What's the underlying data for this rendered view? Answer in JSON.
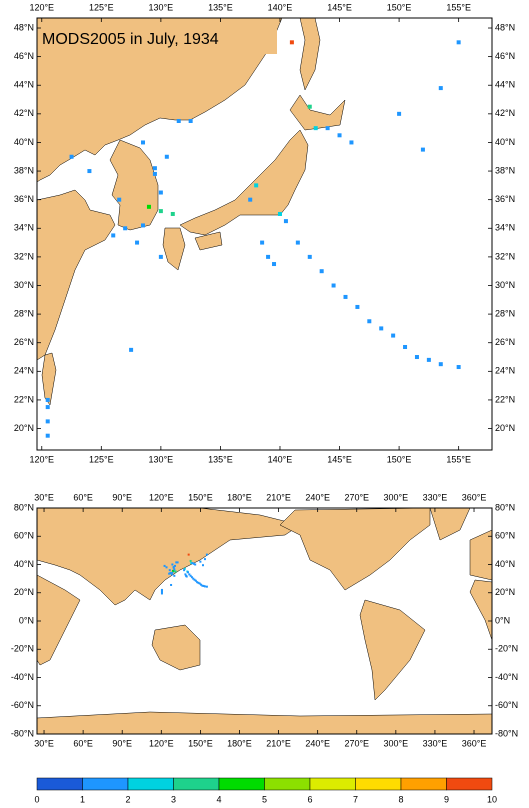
{
  "title": "MODS2005 in July, 1934",
  "top_map": {
    "xlim": [
      119.6,
      157.8
    ],
    "ylim": [
      18.5,
      48.7
    ],
    "xticks": [
      {
        "value": 120,
        "label": "120°E"
      },
      {
        "value": 125,
        "label": "125°E"
      },
      {
        "value": 130,
        "label": "130°E"
      },
      {
        "value": 135,
        "label": "135°E"
      },
      {
        "value": 140,
        "label": "140°E"
      },
      {
        "value": 145,
        "label": "145°E"
      },
      {
        "value": 150,
        "label": "150°E"
      },
      {
        "value": 155,
        "label": "155°E"
      }
    ],
    "yticks": [
      {
        "value": 20,
        "label": "20°N"
      },
      {
        "value": 22,
        "label": "22°N"
      },
      {
        "value": 24,
        "label": "24°N"
      },
      {
        "value": 26,
        "label": "26°N"
      },
      {
        "value": 28,
        "label": "28°N"
      },
      {
        "value": 30,
        "label": "30°N"
      },
      {
        "value": 32,
        "label": "32°N"
      },
      {
        "value": 34,
        "label": "34°N"
      },
      {
        "value": 36,
        "label": "36°N"
      },
      {
        "value": 38,
        "label": "38°N"
      },
      {
        "value": 40,
        "label": "40°N"
      },
      {
        "value": 42,
        "label": "42°N"
      },
      {
        "value": 44,
        "label": "44°N"
      },
      {
        "value": 46,
        "label": "46°N"
      },
      {
        "value": 48,
        "label": "48°N"
      }
    ]
  },
  "bottom_map": {
    "xlim": [
      24.6,
      373.8
    ],
    "ylim": [
      -80,
      80
    ],
    "xticks": [
      {
        "value": 30,
        "label": "30°E"
      },
      {
        "value": 60,
        "label": "60°E"
      },
      {
        "value": 90,
        "label": "90°E"
      },
      {
        "value": 120,
        "label": "120°E"
      },
      {
        "value": 150,
        "label": "150°E"
      },
      {
        "value": 180,
        "label": "180°E"
      },
      {
        "value": 210,
        "label": "210°E"
      },
      {
        "value": 240,
        "label": "240°E"
      },
      {
        "value": 270,
        "label": "270°E"
      },
      {
        "value": 300,
        "label": "300°E"
      },
      {
        "value": 330,
        "label": "330°E"
      },
      {
        "value": 360,
        "label": "360°E"
      }
    ],
    "yticks": [
      {
        "value": 80,
        "label": "80°N"
      },
      {
        "value": 60,
        "label": "60°N"
      },
      {
        "value": 40,
        "label": "40°N"
      },
      {
        "value": 20,
        "label": "20°N"
      },
      {
        "value": 0,
        "label": "0°N"
      },
      {
        "value": -20,
        "label": "-20°N"
      },
      {
        "value": -40,
        "label": "-40°N"
      },
      {
        "value": -60,
        "label": "-60°N"
      },
      {
        "value": -80,
        "label": "-80°N"
      }
    ]
  },
  "colorbar": {
    "ticks": [
      0,
      1,
      2,
      3,
      4,
      5,
      6,
      7,
      8,
      9,
      10
    ],
    "colors": [
      "#1a5ad8",
      "#1e96ff",
      "#00d2e0",
      "#1ed28c",
      "#00dc00",
      "#8ce000",
      "#dcec00",
      "#ffdc00",
      "#ffa000",
      "#f04a10"
    ]
  },
  "observations": {
    "lon": [
      141.5,
      142.5,
      143.5,
      144.5,
      145.5,
      146.5,
      147.5,
      148.5,
      149.5,
      150.5,
      151.5,
      152.5,
      153.5,
      155,
      155,
      153.5,
      150,
      152,
      141,
      142.5,
      143,
      144,
      145,
      146,
      138,
      137.5,
      140,
      140.5,
      138.5,
      139,
      139.5,
      130,
      129,
      131,
      128.5,
      127,
      126,
      128,
      130,
      127.5,
      120.5,
      120.5,
      120.5,
      120.5,
      124,
      122.5,
      126.5,
      130,
      129.5,
      129.5,
      131.5,
      132.5,
      128.5,
      130.5
    ],
    "lat": [
      33,
      32,
      31,
      30,
      29.2,
      28.5,
      27.5,
      27,
      26.5,
      25.7,
      25,
      24.8,
      24.5,
      24.3,
      47,
      43.8,
      42,
      39.5,
      47,
      42.5,
      41,
      41,
      40.5,
      40,
      37,
      36,
      35,
      34.5,
      33,
      32,
      31.5,
      35.2,
      35.5,
      35,
      34.2,
      34,
      33.5,
      33,
      32,
      25.5,
      21.5,
      20.5,
      19.5,
      22,
      38,
      39,
      36,
      36.5,
      38.2,
      37.8,
      41.5,
      41.5,
      40,
      39
    ],
    "values": [
      1,
      1,
      1,
      1,
      1,
      1,
      1,
      1,
      1,
      1,
      1,
      1,
      1,
      1,
      1,
      1,
      1,
      1,
      9,
      3,
      2,
      1,
      1,
      1,
      2,
      1,
      2,
      1,
      1,
      1,
      1,
      3,
      4,
      3,
      1,
      1,
      1,
      1,
      1,
      1,
      1,
      1,
      1,
      1,
      1,
      1,
      1,
      1,
      1,
      1,
      1,
      1,
      1,
      1
    ]
  }
}
